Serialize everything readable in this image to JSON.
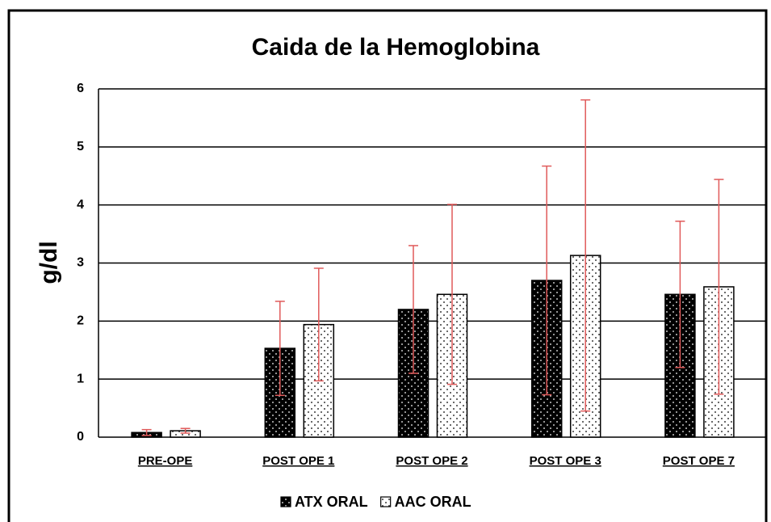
{
  "chart_data": {
    "type": "bar",
    "title": "Caida de la Hemoglobina",
    "y_label": "g/dl",
    "categories": [
      "PRE-OPE",
      "POST OPE 1",
      "POST OPE 2",
      "POST OPE 3",
      "POST OPE 7"
    ],
    "series": [
      {
        "name": "ATX ORAL",
        "color": "#000000",
        "values": [
          0.08,
          1.53,
          2.2,
          2.7,
          2.46
        ],
        "errors": [
          0.05,
          0.81,
          1.1,
          1.97,
          1.26
        ]
      },
      {
        "name": "AAC ORAL",
        "color": "#ffffff",
        "values": [
          0.11,
          1.94,
          2.46,
          3.13,
          2.59
        ],
        "errors": [
          0.04,
          0.97,
          1.55,
          2.68,
          1.85
        ]
      }
    ],
    "error_color": "#e05a5a",
    "ylim": [
      0,
      6
    ],
    "yticks": [
      0,
      1,
      2,
      3,
      4,
      5,
      6
    ],
    "grid": true,
    "legend": "bottom"
  }
}
